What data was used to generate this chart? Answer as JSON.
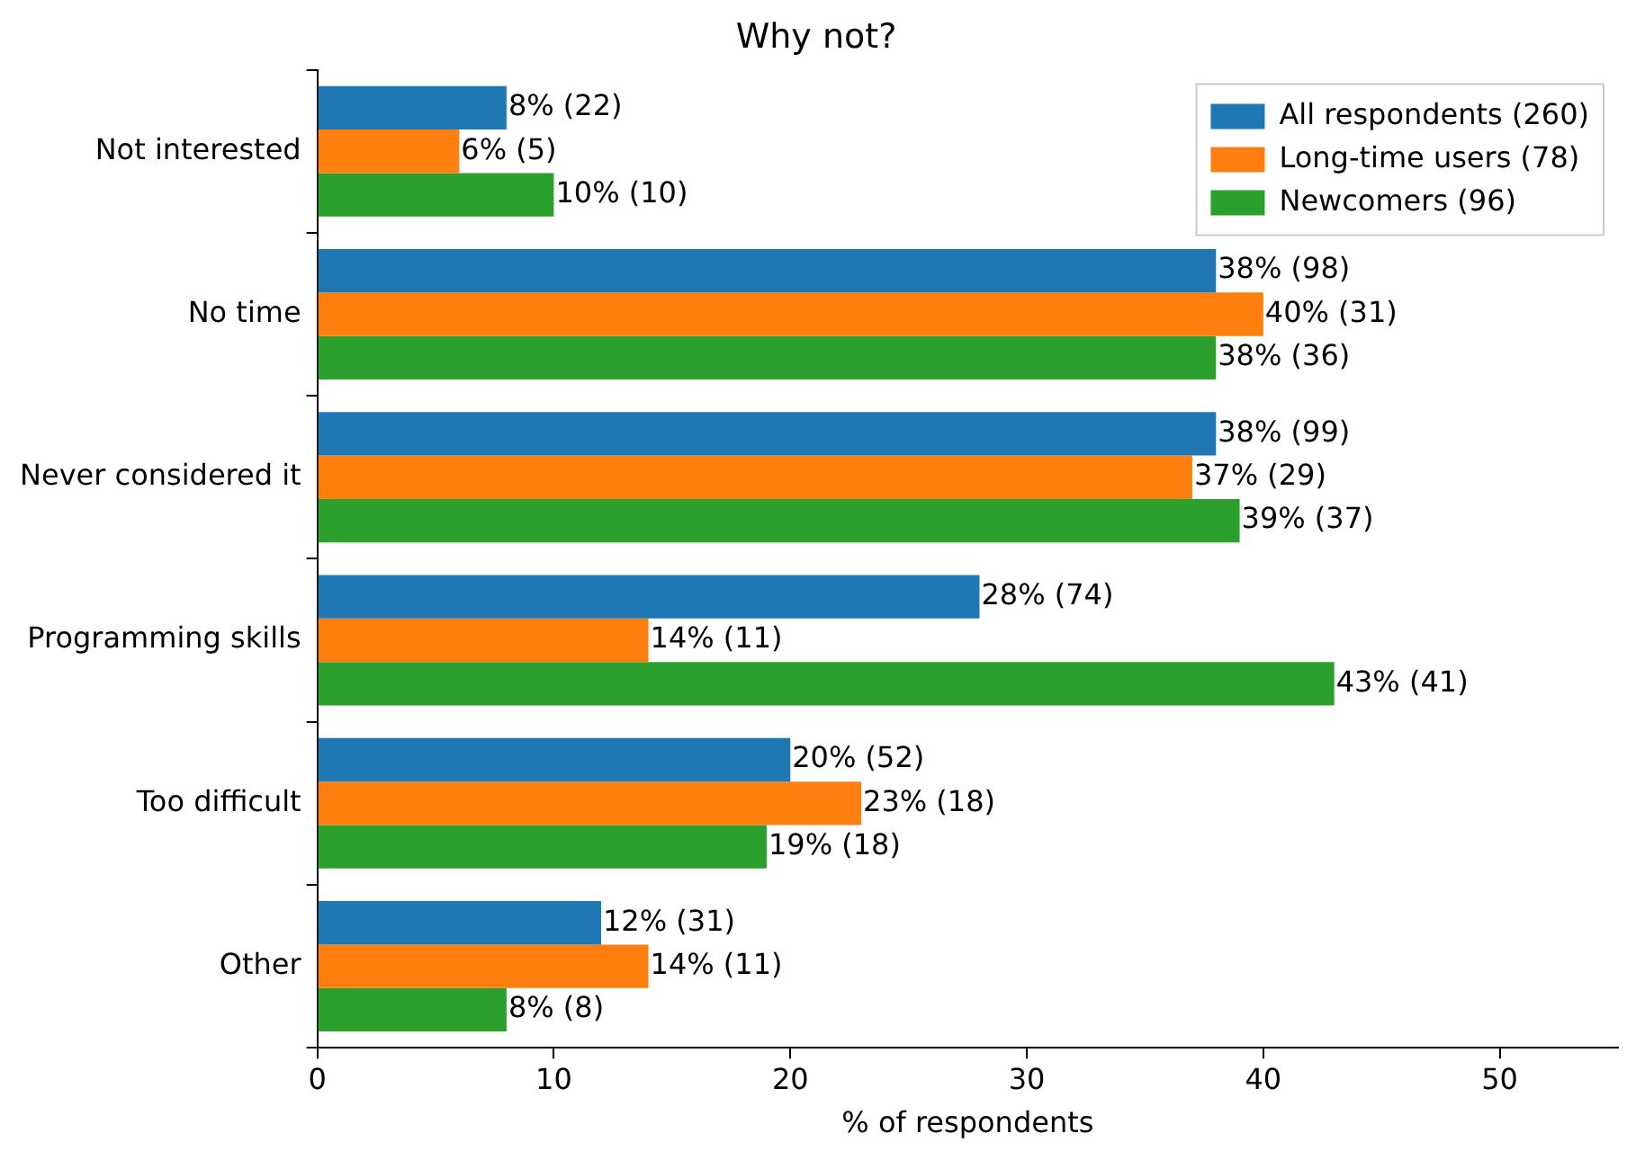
{
  "chart_data": {
    "type": "bar",
    "orientation": "horizontal",
    "title": "Why not?",
    "xlabel": "% of respondents",
    "categories": [
      "Not interested",
      "No time",
      "Never considered it",
      "Programming skills",
      "Too difficult",
      "Other"
    ],
    "series": [
      {
        "name": "All respondents (260)",
        "color": "#1f77b4",
        "values": [
          8,
          38,
          38,
          28,
          20,
          12
        ],
        "value_labels": [
          "8% (22)",
          "38% (98)",
          "38% (99)",
          "28% (74)",
          "20% (52)",
          "12% (31)"
        ]
      },
      {
        "name": "Long-time users (78)",
        "color": "#ff7f0e",
        "values": [
          6,
          40,
          37,
          14,
          23,
          14
        ],
        "value_labels": [
          "6% (5)",
          "40% (31)",
          "37% (29)",
          "14% (11)",
          "23% (18)",
          "14% (11)"
        ]
      },
      {
        "name": "Newcomers (96)",
        "color": "#2ca02c",
        "values": [
          10,
          38,
          39,
          43,
          19,
          8
        ],
        "value_labels": [
          "10% (10)",
          "38% (36)",
          "39% (37)",
          "43% (41)",
          "19% (18)",
          "8% (8)"
        ]
      }
    ],
    "xlim": [
      0,
      55
    ],
    "xticks": [
      0,
      10,
      20,
      30,
      40,
      50
    ],
    "grid": false,
    "legend": "top right"
  }
}
